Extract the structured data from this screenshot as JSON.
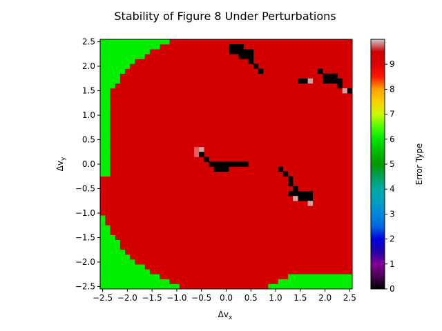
{
  "chart_data": {
    "type": "heatmap",
    "title": "Stability of Figure 8 Under Perturbations",
    "xlabel_base": "Δv",
    "xlabel_sub": "x",
    "ylabel_base": "Δv",
    "ylabel_sub": "y",
    "xlim": [
      -2.55,
      2.55
    ],
    "ylim": [
      -2.55,
      2.55
    ],
    "cell_size": 0.1,
    "xticks": [
      -2.5,
      -2.0,
      -1.5,
      -1.0,
      -0.5,
      0.0,
      0.5,
      1.0,
      1.5,
      2.0,
      2.5
    ],
    "xtick_labels": [
      "−2.5",
      "−2.0",
      "−1.5",
      "−1.0",
      "−0.5",
      "0.0",
      "0.5",
      "1.0",
      "1.5",
      "2.0",
      "2.5"
    ],
    "yticks": [
      2.5,
      2.0,
      1.5,
      1.0,
      0.5,
      0.0,
      -0.5,
      -1.0,
      -1.5,
      -2.0,
      -2.5
    ],
    "ytick_labels": [
      "2.5",
      "2.0",
      "1.5",
      "1.0",
      "0.5",
      "0.0",
      "−0.5",
      "−1.0",
      "−1.5",
      "−2.0",
      "−2.5"
    ],
    "colorbar": {
      "label": "Error Type",
      "range": [
        0,
        10
      ],
      "ticks": [
        0,
        1,
        2,
        3,
        4,
        5,
        6,
        7,
        8,
        9
      ],
      "tick_labels": [
        "0",
        "1",
        "2",
        "3",
        "4",
        "5",
        "6",
        "7",
        "8",
        "9"
      ],
      "colormap": "nipy_spectral"
    },
    "background_value": 9.3,
    "stable_region": {
      "value": 0,
      "description_values_x_center": [
        [
          -0.6,
          0.3
        ],
        [
          0.3,
          0.2
        ],
        [
          0.35,
          2.2
        ],
        [
          1.45,
          -0.65
        ],
        [
          2.15,
          1.75
        ]
      ]
    },
    "cells": [
      {
        "x": 0.2,
        "y": 2.4,
        "v": 0
      },
      {
        "x": 0.3,
        "y": 2.4,
        "v": 0
      },
      {
        "x": 0.1,
        "y": 2.4,
        "v": 0
      },
      {
        "x": 0.1,
        "y": 2.3,
        "v": 0
      },
      {
        "x": 0.2,
        "y": 2.3,
        "v": 0
      },
      {
        "x": 0.3,
        "y": 2.3,
        "v": 0
      },
      {
        "x": 0.4,
        "y": 2.3,
        "v": 0
      },
      {
        "x": 0.5,
        "y": 2.3,
        "v": 0
      },
      {
        "x": 0.3,
        "y": 2.2,
        "v": 0
      },
      {
        "x": 0.4,
        "y": 2.2,
        "v": 0
      },
      {
        "x": 0.5,
        "y": 2.2,
        "v": 0
      },
      {
        "x": 0.5,
        "y": 2.1,
        "v": 0
      },
      {
        "x": 0.6,
        "y": 2.0,
        "v": 0
      },
      {
        "x": 0.7,
        "y": 1.9,
        "v": 0
      },
      {
        "x": 1.5,
        "y": 1.7,
        "v": 0
      },
      {
        "x": 1.6,
        "y": 1.7,
        "v": 0
      },
      {
        "x": 1.7,
        "y": 1.7,
        "v": 9.8
      },
      {
        "x": 1.9,
        "y": 1.9,
        "v": 0
      },
      {
        "x": 2.0,
        "y": 1.8,
        "v": 0
      },
      {
        "x": 2.1,
        "y": 1.8,
        "v": 0
      },
      {
        "x": 2.2,
        "y": 1.8,
        "v": 0
      },
      {
        "x": 2.0,
        "y": 1.7,
        "v": 0
      },
      {
        "x": 2.1,
        "y": 1.7,
        "v": 0
      },
      {
        "x": 2.2,
        "y": 1.7,
        "v": 0
      },
      {
        "x": 2.3,
        "y": 1.7,
        "v": 0
      },
      {
        "x": 2.3,
        "y": 1.6,
        "v": 0
      },
      {
        "x": 2.4,
        "y": 1.5,
        "v": 9.8
      },
      {
        "x": 2.5,
        "y": 1.5,
        "v": 0
      },
      {
        "x": -0.6,
        "y": 0.3,
        "v": 9.0
      },
      {
        "x": -0.5,
        "y": 0.3,
        "v": 9.8
      },
      {
        "x": -0.6,
        "y": 0.2,
        "v": 9.0
      },
      {
        "x": -0.5,
        "y": 0.2,
        "v": 0
      },
      {
        "x": -0.4,
        "y": 0.1,
        "v": 0
      },
      {
        "x": -0.3,
        "y": 0.0,
        "v": 0
      },
      {
        "x": -0.2,
        "y": 0.0,
        "v": 0
      },
      {
        "x": -0.1,
        "y": 0.0,
        "v": 0
      },
      {
        "x": 0.0,
        "y": 0.0,
        "v": 0
      },
      {
        "x": 0.1,
        "y": 0.0,
        "v": 0
      },
      {
        "x": 0.2,
        "y": 0.0,
        "v": 0
      },
      {
        "x": 0.3,
        "y": 0.0,
        "v": 0
      },
      {
        "x": 0.4,
        "y": 0.0,
        "v": 0
      },
      {
        "x": -0.2,
        "y": -0.1,
        "v": 0
      },
      {
        "x": -0.1,
        "y": -0.1,
        "v": 0
      },
      {
        "x": 0.0,
        "y": -0.1,
        "v": 0
      },
      {
        "x": 1.1,
        "y": -0.1,
        "v": 0
      },
      {
        "x": 1.2,
        "y": -0.2,
        "v": 0
      },
      {
        "x": 1.3,
        "y": -0.3,
        "v": 0
      },
      {
        "x": 1.3,
        "y": -0.4,
        "v": 0
      },
      {
        "x": 1.4,
        "y": -0.5,
        "v": 0
      },
      {
        "x": 1.3,
        "y": -0.6,
        "v": 0
      },
      {
        "x": 1.4,
        "y": -0.6,
        "v": 0
      },
      {
        "x": 1.5,
        "y": -0.6,
        "v": 0
      },
      {
        "x": 1.6,
        "y": -0.6,
        "v": 0
      },
      {
        "x": 1.7,
        "y": -0.6,
        "v": 0
      },
      {
        "x": 1.5,
        "y": -0.7,
        "v": 0
      },
      {
        "x": 1.6,
        "y": -0.7,
        "v": 0
      },
      {
        "x": 1.7,
        "y": -0.7,
        "v": 0
      },
      {
        "x": 1.4,
        "y": -0.7,
        "v": 9.8
      },
      {
        "x": 1.7,
        "y": -0.8,
        "v": 9.8
      }
    ],
    "green_boundary_note": "value 6 cells fill left/bottom edge regions outside the red disk"
  }
}
